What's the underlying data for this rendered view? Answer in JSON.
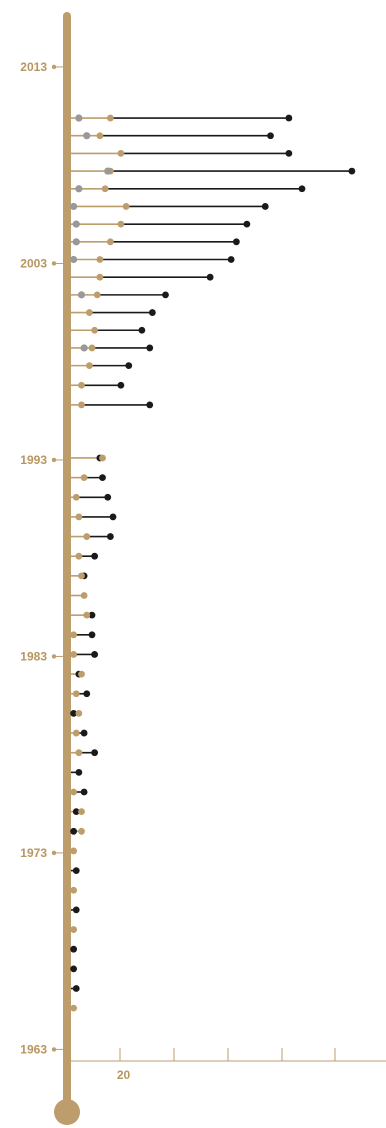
{
  "colors": {
    "axis": "#bd9d6b",
    "black": "#1a1a1a",
    "grey": "#999999",
    "gold": "#bd9d6b",
    "label": "#b8965f"
  },
  "chart_data": {
    "type": "dot-range",
    "y_ticks": [
      "2013",
      "2003",
      "1993",
      "1983",
      "1973",
      "1963"
    ],
    "y_tick_values": [
      2013,
      2003,
      1993,
      1983,
      1973,
      1963
    ],
    "x_ticks": [
      "20"
    ],
    "x_tick_values": [
      20
    ],
    "xlim": [
      0,
      120
    ],
    "ylim": [
      1959,
      2016
    ],
    "rows": [
      {
        "y": 2010.4,
        "grey": 3,
        "gold": 15,
        "black": 83
      },
      {
        "y": 2009.5,
        "grey": 6,
        "gold": 11,
        "black": 76
      },
      {
        "y": 2008.6,
        "grey": null,
        "gold": 19,
        "black": 83
      },
      {
        "y": 2007.7,
        "grey": 14,
        "gold": 15,
        "black": 107
      },
      {
        "y": 2006.8,
        "grey": 3,
        "gold": 13,
        "black": 88
      },
      {
        "y": 2005.9,
        "grey": 1,
        "gold": 21,
        "black": 74
      },
      {
        "y": 2005.0,
        "grey": 2,
        "gold": 19,
        "black": 67
      },
      {
        "y": 2004.1,
        "grey": 2,
        "gold": 15,
        "black": 63
      },
      {
        "y": 2003.2,
        "grey": 1,
        "gold": 11,
        "black": 61
      },
      {
        "y": 2002.3,
        "grey": null,
        "gold": 11,
        "black": 53
      },
      {
        "y": 2001.4,
        "grey": 4,
        "gold": 10,
        "black": 36
      },
      {
        "y": 2000.5,
        "grey": null,
        "gold": 7,
        "black": 31
      },
      {
        "y": 1999.6,
        "grey": null,
        "gold": 9,
        "black": 27
      },
      {
        "y": 1998.7,
        "grey": 5,
        "gold": 8,
        "black": 30
      },
      {
        "y": 1997.8,
        "grey": null,
        "gold": 7,
        "black": 22
      },
      {
        "y": 1996.8,
        "grey": null,
        "gold": 4,
        "black": 19
      },
      {
        "y": 1995.8,
        "grey": null,
        "gold": 4,
        "black": 30
      },
      {
        "y": 1993.1,
        "grey": null,
        "gold": 12,
        "black": 11
      },
      {
        "y": 1992.1,
        "grey": null,
        "gold": 5,
        "black": 12
      },
      {
        "y": 1991.1,
        "grey": null,
        "gold": 2,
        "black": 14
      },
      {
        "y": 1990.1,
        "grey": null,
        "gold": 3,
        "black": 16
      },
      {
        "y": 1989.1,
        "grey": null,
        "gold": 6,
        "black": 15
      },
      {
        "y": 1988.1,
        "grey": null,
        "gold": 3,
        "black": 9
      },
      {
        "y": 1987.1,
        "grey": null,
        "gold": 4,
        "black": 5
      },
      {
        "y": 1986.1,
        "grey": null,
        "gold": 5,
        "black": null
      },
      {
        "y": 1985.1,
        "grey": null,
        "gold": 6,
        "black": 8
      },
      {
        "y": 1984.1,
        "grey": null,
        "gold": 1,
        "black": 8
      },
      {
        "y": 1983.1,
        "grey": null,
        "gold": 1,
        "black": 9
      },
      {
        "y": 1982.1,
        "grey": null,
        "gold": 4,
        "black": 3
      },
      {
        "y": 1981.1,
        "grey": null,
        "gold": 2,
        "black": 6
      },
      {
        "y": 1980.1,
        "grey": null,
        "gold": 3,
        "black": 1
      },
      {
        "y": 1979.1,
        "grey": null,
        "gold": 2,
        "black": 5
      },
      {
        "y": 1978.1,
        "grey": null,
        "gold": 3,
        "black": 9
      },
      {
        "y": 1977.1,
        "grey": null,
        "gold": null,
        "black": 3
      },
      {
        "y": 1976.1,
        "grey": null,
        "gold": 1,
        "black": 5
      },
      {
        "y": 1975.1,
        "grey": null,
        "gold": 4,
        "black": 2
      },
      {
        "y": 1974.1,
        "grey": null,
        "gold": 4,
        "black": 1
      },
      {
        "y": 1973.1,
        "grey": null,
        "gold": 1,
        "black": null
      },
      {
        "y": 1972.1,
        "grey": null,
        "gold": null,
        "black": 2
      },
      {
        "y": 1971.1,
        "grey": null,
        "gold": 1,
        "black": null
      },
      {
        "y": 1970.1,
        "grey": null,
        "gold": null,
        "black": 2
      },
      {
        "y": 1969.1,
        "grey": null,
        "gold": 1,
        "black": null
      },
      {
        "y": 1968.1,
        "grey": null,
        "gold": null,
        "black": 1
      },
      {
        "y": 1967.1,
        "grey": null,
        "gold": null,
        "black": 1
      },
      {
        "y": 1966.1,
        "grey": null,
        "gold": null,
        "black": 2
      },
      {
        "y": 1965.1,
        "grey": null,
        "gold": 1,
        "black": null
      }
    ]
  }
}
